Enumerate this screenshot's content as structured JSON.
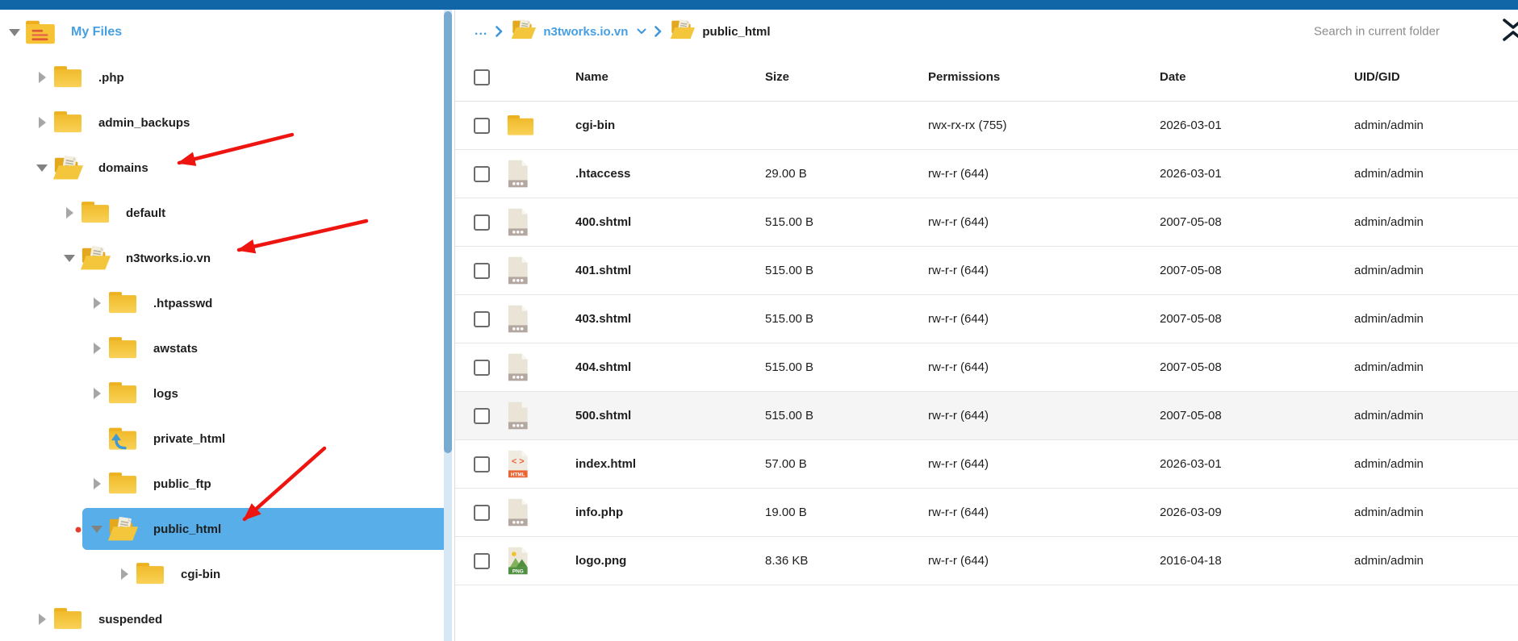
{
  "colors": {
    "topbar": "#1166a8",
    "accent": "#469fe0",
    "highlight": "#58aee8",
    "arrow": "#ee1510",
    "scrollbar_thumb": "#79aacf"
  },
  "sidebar": {
    "tree": [
      {
        "label": "My Files",
        "level": 0,
        "state": "expanded",
        "icon": "myfiles",
        "root": true
      },
      {
        "label": ".php",
        "level": 1,
        "state": "collapsed",
        "icon": "folder"
      },
      {
        "label": "admin_backups",
        "level": 1,
        "state": "collapsed",
        "icon": "folder"
      },
      {
        "label": "domains",
        "level": 1,
        "state": "expanded",
        "icon": "folder-open"
      },
      {
        "label": "default",
        "level": 2,
        "state": "collapsed",
        "icon": "folder"
      },
      {
        "label": "n3tworks.io.vn",
        "level": 2,
        "state": "expanded",
        "icon": "folder-open"
      },
      {
        "label": ".htpasswd",
        "level": 3,
        "state": "collapsed",
        "icon": "folder"
      },
      {
        "label": "awstats",
        "level": 3,
        "state": "collapsed",
        "icon": "folder"
      },
      {
        "label": "logs",
        "level": 3,
        "state": "collapsed",
        "icon": "folder"
      },
      {
        "label": "private_html",
        "level": 3,
        "state": "none",
        "icon": "folder-link"
      },
      {
        "label": "public_ftp",
        "level": 3,
        "state": "collapsed",
        "icon": "folder"
      },
      {
        "label": "public_html",
        "level": 3,
        "state": "expanded",
        "icon": "folder-open",
        "selected": true
      },
      {
        "label": "cgi-bin",
        "level": 4,
        "state": "collapsed",
        "icon": "folder"
      },
      {
        "label": "suspended",
        "level": 1,
        "state": "collapsed",
        "icon": "folder"
      }
    ]
  },
  "breadcrumb": {
    "ellipsis": "...",
    "items": [
      {
        "label": "n3tworks.io.vn",
        "dropdown": true
      },
      {
        "label": "public_html",
        "dropdown": false
      }
    ]
  },
  "search": {
    "placeholder": "Search in current folder"
  },
  "table": {
    "columns": [
      "Name",
      "Size",
      "Permissions",
      "Date",
      "UID/GID"
    ],
    "rows": [
      {
        "icon": "folder",
        "name": "cgi-bin",
        "size": "",
        "permissions": "rwx-rx-rx (755)",
        "date": "2026-03-01",
        "uid": "admin/admin"
      },
      {
        "icon": "file",
        "name": ".htaccess",
        "size": "29.00 B",
        "permissions": "rw-r-r (644)",
        "date": "2026-03-01",
        "uid": "admin/admin"
      },
      {
        "icon": "file",
        "name": "400.shtml",
        "size": "515.00 B",
        "permissions": "rw-r-r (644)",
        "date": "2007-05-08",
        "uid": "admin/admin"
      },
      {
        "icon": "file",
        "name": "401.shtml",
        "size": "515.00 B",
        "permissions": "rw-r-r (644)",
        "date": "2007-05-08",
        "uid": "admin/admin"
      },
      {
        "icon": "file",
        "name": "403.shtml",
        "size": "515.00 B",
        "permissions": "rw-r-r (644)",
        "date": "2007-05-08",
        "uid": "admin/admin"
      },
      {
        "icon": "file",
        "name": "404.shtml",
        "size": "515.00 B",
        "permissions": "rw-r-r (644)",
        "date": "2007-05-08",
        "uid": "admin/admin"
      },
      {
        "icon": "file",
        "name": "500.shtml",
        "size": "515.00 B",
        "permissions": "rw-r-r (644)",
        "date": "2007-05-08",
        "uid": "admin/admin",
        "shaded": true
      },
      {
        "icon": "html",
        "name": "index.html",
        "size": "57.00 B",
        "permissions": "rw-r-r (644)",
        "date": "2026-03-01",
        "uid": "admin/admin"
      },
      {
        "icon": "file",
        "name": "info.php",
        "size": "19.00 B",
        "permissions": "rw-r-r (644)",
        "date": "2026-03-09",
        "uid": "admin/admin"
      },
      {
        "icon": "png",
        "name": "logo.png",
        "size": "8.36 KB",
        "permissions": "rw-r-r (644)",
        "date": "2016-04-18",
        "uid": "admin/admin"
      }
    ]
  }
}
